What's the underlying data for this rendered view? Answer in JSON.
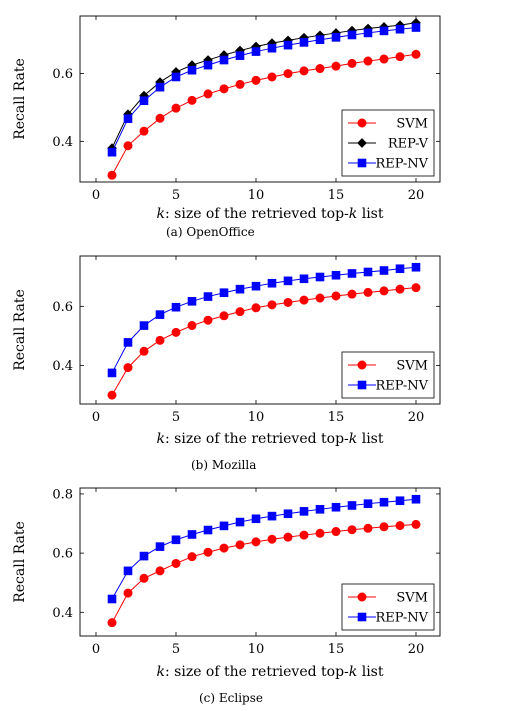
{
  "chart_data": [
    {
      "type": "line",
      "caption": "(a) OpenOffice",
      "xlabel": "k: size of the retrieved top-k list",
      "xlabel_parts": [
        "k",
        ": size of the retrieved top-",
        "k",
        " list"
      ],
      "ylabel": "Recall Rate",
      "xlim": [
        -1,
        21.5
      ],
      "ylim": [
        0.28,
        0.77
      ],
      "xticks": [
        0,
        5,
        10,
        15,
        20
      ],
      "yticks": [
        0.4,
        0.6
      ],
      "yticklabels": [
        "0.4",
        "0.6"
      ],
      "legend_position": "bottom-right",
      "x": [
        1,
        2,
        3,
        4,
        5,
        6,
        7,
        8,
        9,
        10,
        11,
        12,
        13,
        14,
        15,
        16,
        17,
        18,
        19,
        20
      ],
      "series": [
        {
          "name": "SVM",
          "color": "#ff0000",
          "marker": "circle",
          "values": [
            0.3,
            0.387,
            0.43,
            0.468,
            0.498,
            0.521,
            0.54,
            0.555,
            0.568,
            0.58,
            0.59,
            0.6,
            0.608,
            0.615,
            0.622,
            0.63,
            0.637,
            0.643,
            0.65,
            0.657
          ]
        },
        {
          "name": "REP-V",
          "color": "#000000",
          "marker": "diamond",
          "values": [
            0.38,
            0.48,
            0.535,
            0.575,
            0.605,
            0.625,
            0.64,
            0.655,
            0.668,
            0.68,
            0.69,
            0.698,
            0.706,
            0.713,
            0.72,
            0.727,
            0.733,
            0.738,
            0.743,
            0.75
          ]
        },
        {
          "name": "REP-NV",
          "color": "#0000ff",
          "marker": "square",
          "values": [
            0.368,
            0.467,
            0.52,
            0.56,
            0.59,
            0.61,
            0.625,
            0.64,
            0.653,
            0.665,
            0.675,
            0.684,
            0.692,
            0.7,
            0.707,
            0.714,
            0.72,
            0.726,
            0.731,
            0.736
          ]
        }
      ]
    },
    {
      "type": "line",
      "caption": "(b) Mozilla",
      "xlabel": "k: size of the retrieved top-k list",
      "xlabel_parts": [
        "k",
        ": size of the retrieved top-",
        "k",
        " list"
      ],
      "ylabel": "Recall Rate",
      "xlim": [
        -1,
        21.5
      ],
      "ylim": [
        0.27,
        0.77
      ],
      "xticks": [
        0,
        5,
        10,
        15,
        20
      ],
      "yticks": [
        0.4,
        0.6
      ],
      "yticklabels": [
        "0.4",
        "0.6"
      ],
      "legend_position": "bottom-right",
      "x": [
        1,
        2,
        3,
        4,
        5,
        6,
        7,
        8,
        9,
        10,
        11,
        12,
        13,
        14,
        15,
        16,
        17,
        18,
        19,
        20
      ],
      "series": [
        {
          "name": "SVM",
          "color": "#ff0000",
          "marker": "circle",
          "values": [
            0.3,
            0.393,
            0.448,
            0.485,
            0.512,
            0.535,
            0.553,
            0.568,
            0.582,
            0.595,
            0.605,
            0.613,
            0.621,
            0.628,
            0.635,
            0.641,
            0.647,
            0.652,
            0.658,
            0.663
          ]
        },
        {
          "name": "REP-NV",
          "color": "#0000ff",
          "marker": "square",
          "values": [
            0.375,
            0.478,
            0.535,
            0.572,
            0.597,
            0.617,
            0.633,
            0.646,
            0.658,
            0.668,
            0.678,
            0.686,
            0.693,
            0.699,
            0.705,
            0.711,
            0.716,
            0.721,
            0.727,
            0.732
          ]
        }
      ]
    },
    {
      "type": "line",
      "caption": "(c) Eclipse",
      "xlabel": "k: size of the retrieved top-k list",
      "xlabel_parts": [
        "k",
        ": size of the retrieved top-",
        "k",
        " list"
      ],
      "ylabel": "Recall Rate",
      "xlim": [
        -1,
        21.5
      ],
      "ylim": [
        0.32,
        0.82
      ],
      "xticks": [
        0,
        5,
        10,
        15,
        20
      ],
      "yticks": [
        0.4,
        0.6,
        0.8
      ],
      "yticklabels": [
        "0.4",
        "0.6",
        "0.8"
      ],
      "legend_position": "bottom-right",
      "x": [
        1,
        2,
        3,
        4,
        5,
        6,
        7,
        8,
        9,
        10,
        11,
        12,
        13,
        14,
        15,
        16,
        17,
        18,
        19,
        20
      ],
      "series": [
        {
          "name": "SVM",
          "color": "#ff0000",
          "marker": "circle",
          "values": [
            0.365,
            0.465,
            0.515,
            0.54,
            0.565,
            0.588,
            0.603,
            0.617,
            0.628,
            0.638,
            0.647,
            0.654,
            0.661,
            0.667,
            0.673,
            0.679,
            0.684,
            0.689,
            0.693,
            0.697
          ]
        },
        {
          "name": "REP-NV",
          "color": "#0000ff",
          "marker": "square",
          "values": [
            0.445,
            0.54,
            0.59,
            0.622,
            0.645,
            0.663,
            0.678,
            0.692,
            0.705,
            0.716,
            0.725,
            0.733,
            0.741,
            0.748,
            0.755,
            0.761,
            0.767,
            0.772,
            0.777,
            0.782
          ]
        }
      ]
    }
  ]
}
